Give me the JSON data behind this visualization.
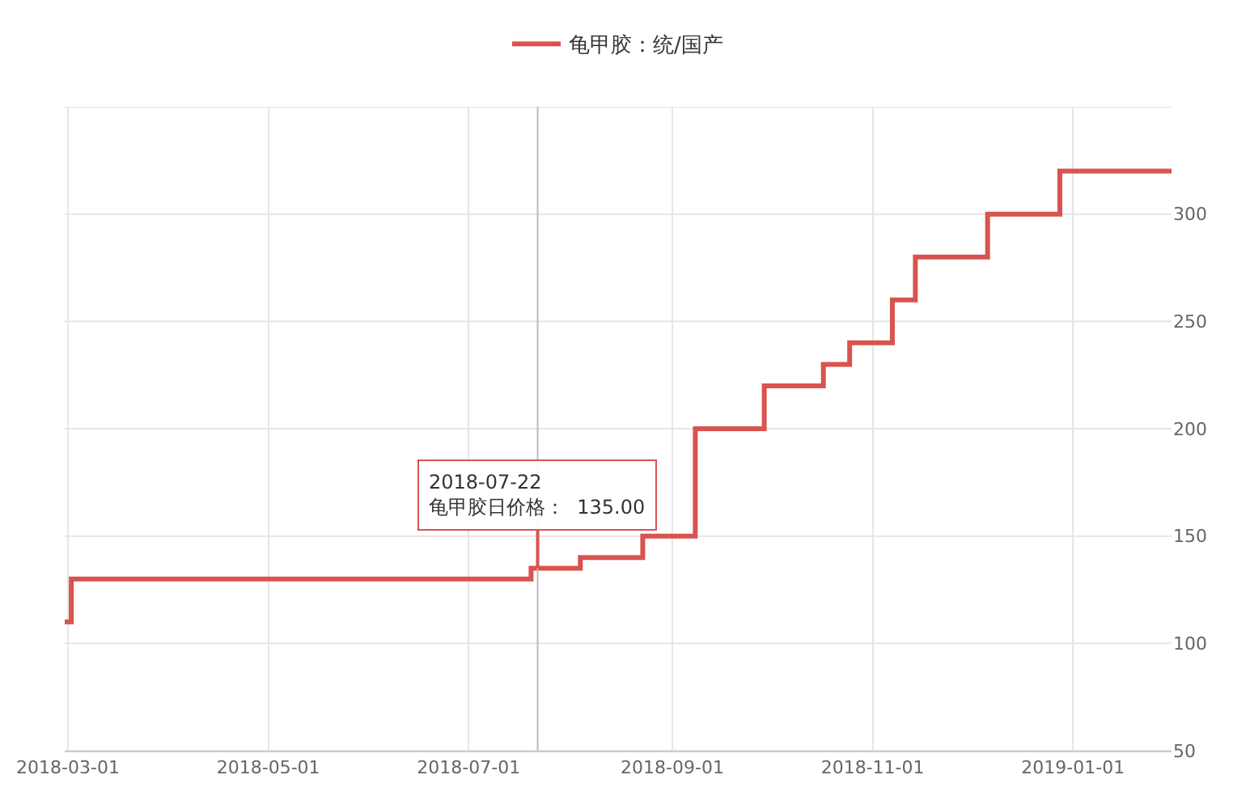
{
  "chart_data": {
    "type": "step",
    "x": [
      "2018-02-28",
      "2018-03-02",
      "2018-07-20",
      "2018-08-04",
      "2018-08-23",
      "2018-09-08",
      "2018-09-29",
      "2018-10-17",
      "2018-10-25",
      "2018-11-07",
      "2018-11-14",
      "2018-12-06",
      "2018-12-28",
      "2019-01-31"
    ],
    "series": [
      {
        "name": "龟甲胶：统/国产",
        "color": "#d9534f",
        "values": [
          110,
          130,
          135,
          140,
          150,
          200,
          220,
          230,
          240,
          260,
          280,
          300,
          320,
          320
        ]
      }
    ],
    "xlim": [
      "2018-02-28",
      "2019-01-31"
    ],
    "xticks": [
      {
        "value": "2018-03-01",
        "label": "2018-03-01"
      },
      {
        "value": "2018-05-01",
        "label": "2018-05-01"
      },
      {
        "value": "2018-07-01",
        "label": "2018-07-01"
      },
      {
        "value": "2018-09-01",
        "label": "2018-09-01"
      },
      {
        "value": "2018-11-01",
        "label": "2018-11-01"
      },
      {
        "value": "2019-01-01",
        "label": "2019-01-01"
      }
    ],
    "ylim": [
      50,
      350
    ],
    "yticks": [
      50,
      100,
      150,
      200,
      250,
      300,
      {
        "value": 350,
        "label": null
      }
    ],
    "grid": true,
    "legend": "top",
    "marker": "none",
    "line_style": "solid",
    "ref_lines": [
      {
        "axis": "x",
        "value": "2018-07-22",
        "label": null,
        "color": "#bbbbbb"
      }
    ],
    "annotations": [
      {
        "text": "2018-07-22\n龟甲胶日价格：  135.00",
        "x": "2018-07-22",
        "y": 135
      }
    ]
  }
}
